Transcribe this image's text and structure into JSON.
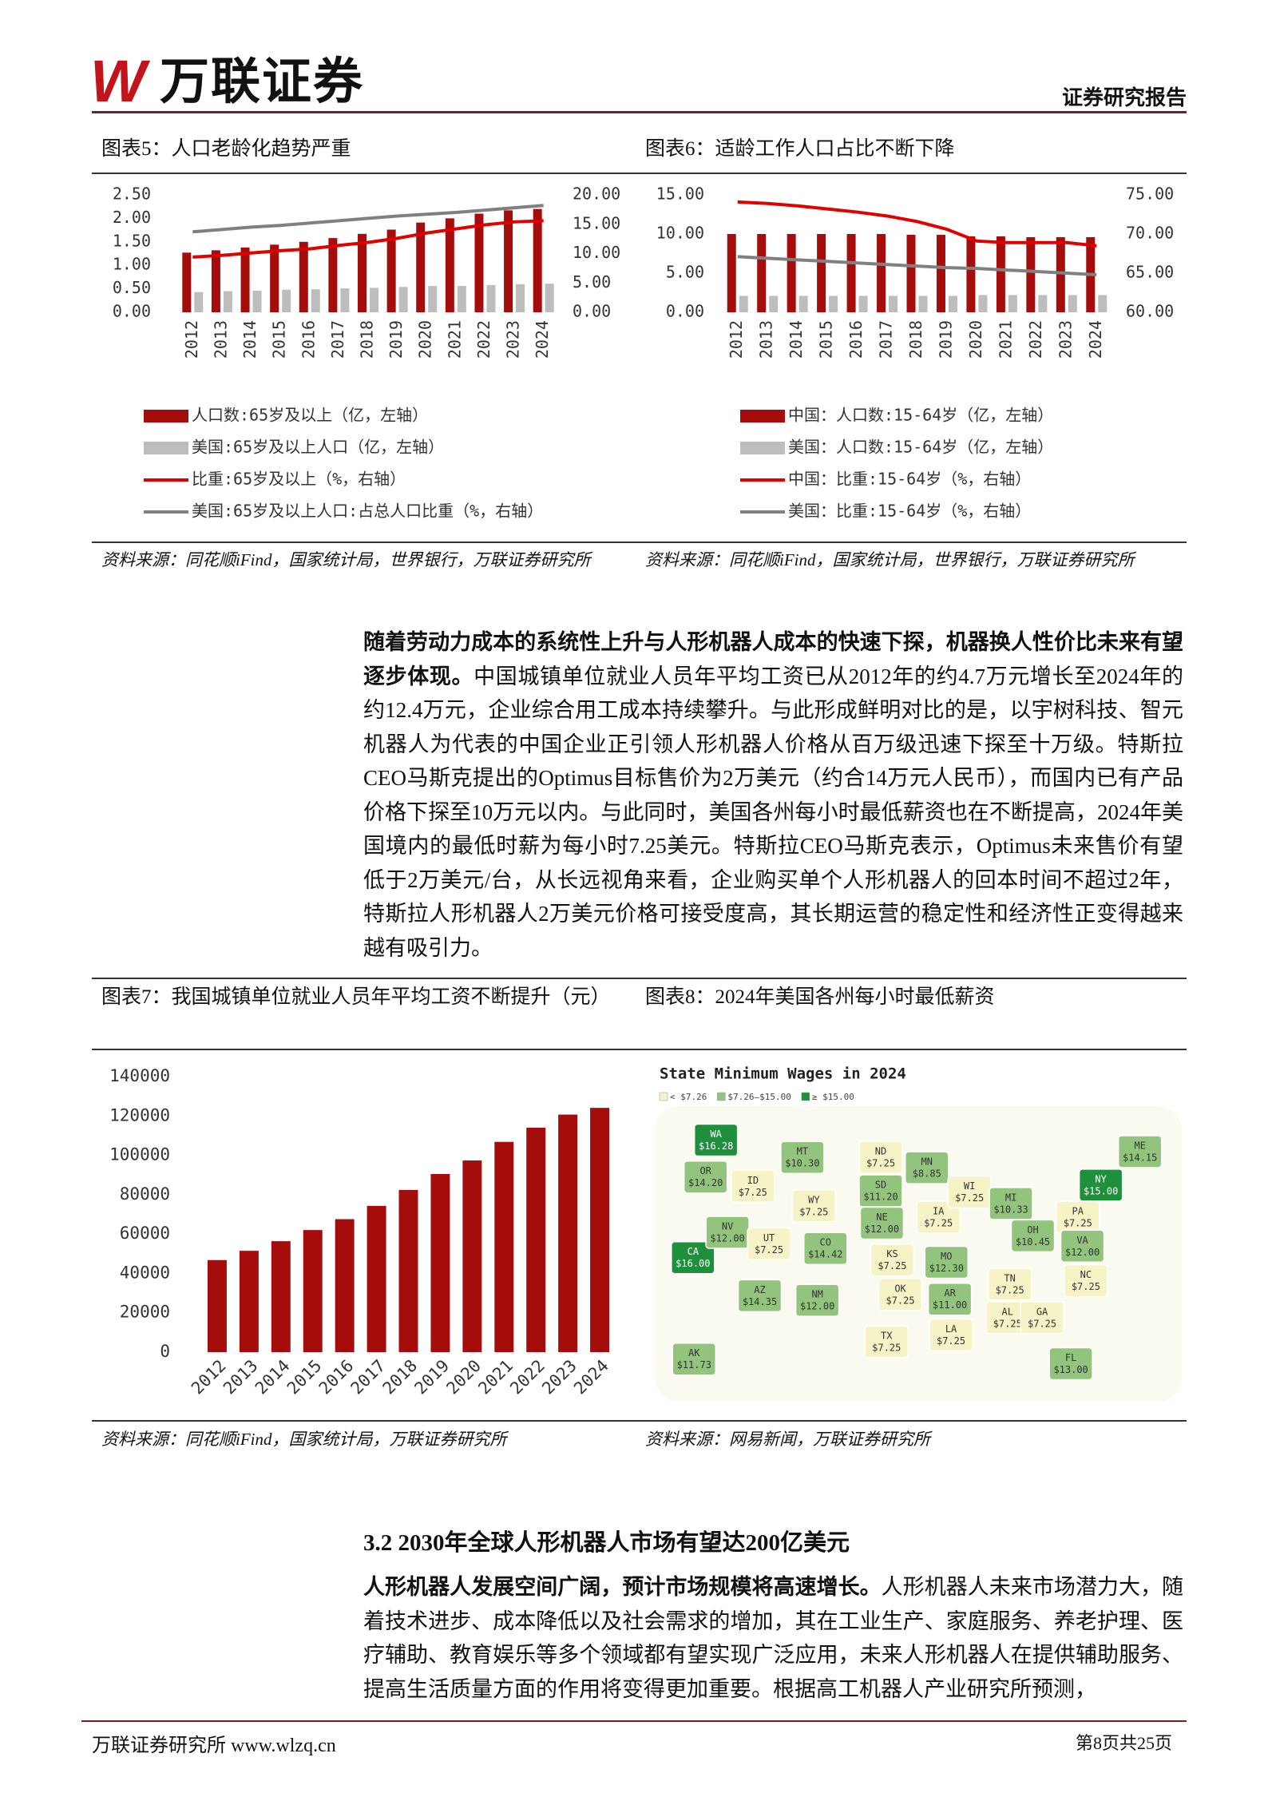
{
  "header": {
    "logo_mark": "W",
    "logo_text": "万联证券",
    "report_type": "证券研究报告"
  },
  "figures": [
    {
      "title": "图表5：人口老龄化趋势严重",
      "source": "资料来源：同花顺iFind，国家统计局，世界银行，万联证券研究所",
      "chart": {
        "type": "bar",
        "categories": [
          "2012",
          "2013",
          "2014",
          "2015",
          "2016",
          "2017",
          "2018",
          "2019",
          "2020",
          "2021",
          "2022",
          "2023",
          "2024"
        ],
        "series": [
          {
            "name": "人口数:65岁及以上（亿，左轴）",
            "type": "bar",
            "color": "#a50d0d",
            "values": [
              1.27,
              1.32,
              1.38,
              1.44,
              1.5,
              1.58,
              1.67,
              1.76,
              1.91,
              2.0,
              2.1,
              2.17,
              2.2
            ]
          },
          {
            "name": "美国:65岁及以上人口（亿，左轴）",
            "type": "bar",
            "color": "#bdbdbd",
            "values": [
              0.43,
              0.45,
              0.46,
              0.48,
              0.49,
              0.51,
              0.52,
              0.54,
              0.56,
              0.56,
              0.58,
              0.6,
              0.61
            ]
          },
          {
            "name": "比重:65岁及以上（%，右轴）",
            "type": "line",
            "axis": "y2",
            "color": "#e00000",
            "values": [
              9.4,
              9.7,
              10.1,
              10.5,
              10.8,
              11.4,
              11.9,
              12.6,
              13.5,
              14.2,
              14.9,
              15.4,
              15.6
            ]
          },
          {
            "name": "美国:65岁及以上人口:占总人口比重（%，右轴）",
            "type": "line",
            "axis": "y2",
            "color": "#808080",
            "values": [
              13.7,
              14.1,
              14.5,
              14.8,
              15.2,
              15.6,
              16.0,
              16.4,
              16.7,
              17.0,
              17.4,
              17.8,
              18.2
            ]
          }
        ],
        "ylim": [
          0,
          2.5
        ],
        "yticks": [
          {
            "value": 0,
            "label": "0.00"
          },
          {
            "value": 0.5,
            "label": "0.50"
          },
          {
            "value": 1,
            "label": "1.00"
          },
          {
            "value": 1.5,
            "label": "1.50"
          },
          {
            "value": 2,
            "label": "2.00"
          },
          {
            "value": 2.5,
            "label": "2.50"
          }
        ],
        "y2lim": [
          0,
          20
        ],
        "y2ticks": [
          {
            "value": 0,
            "label": "0.00"
          },
          {
            "value": 5,
            "label": "5.00"
          },
          {
            "value": 10,
            "label": "10.00"
          },
          {
            "value": 15,
            "label": "15.00"
          },
          {
            "value": 20,
            "label": "20.00"
          }
        ]
      }
    },
    {
      "title": "图表6：适龄工作人口占比不断下降",
      "source": "资料来源：同花顺iFind，国家统计局，世界银行，万联证券研究所",
      "chart": {
        "type": "bar",
        "categories": [
          "2012",
          "2013",
          "2014",
          "2015",
          "2016",
          "2017",
          "2018",
          "2019",
          "2020",
          "2021",
          "2022",
          "2023",
          "2024"
        ],
        "series": [
          {
            "name": "中国：人口数:15-64岁（亿，左轴）",
            "type": "bar",
            "color": "#a50d0d",
            "values": [
              10.0,
              10.0,
              10.0,
              10.0,
              10.0,
              10.0,
              9.9,
              9.9,
              9.7,
              9.7,
              9.6,
              9.6,
              9.6
            ]
          },
          {
            "name": "美国：人口数:15-64岁（亿，左轴）",
            "type": "bar",
            "color": "#bdbdbd",
            "values": [
              2.1,
              2.1,
              2.1,
              2.1,
              2.1,
              2.1,
              2.1,
              2.1,
              2.2,
              2.2,
              2.2,
              2.2,
              2.2
            ]
          },
          {
            "name": "中国：比重:15-64岁（%，右轴）",
            "type": "line",
            "axis": "y2",
            "color": "#e00000",
            "values": [
              74.1,
              73.9,
              73.6,
              73.2,
              72.8,
              72.3,
              71.6,
              70.6,
              69.1,
              68.9,
              68.9,
              68.9,
              68.5
            ]
          },
          {
            "name": "美国：比重:15-64岁（%，右轴）",
            "type": "line",
            "axis": "y2",
            "color": "#808080",
            "values": [
              67.1,
              66.9,
              66.7,
              66.5,
              66.3,
              66.1,
              65.9,
              65.7,
              65.6,
              65.4,
              65.2,
              65.0,
              64.8
            ]
          }
        ],
        "ylim": [
          0,
          15
        ],
        "yticks": [
          {
            "value": 0,
            "label": "0.00"
          },
          {
            "value": 5,
            "label": "5.00"
          },
          {
            "value": 10,
            "label": "10.00"
          },
          {
            "value": 15,
            "label": "15.00"
          }
        ],
        "y2lim": [
          60,
          75
        ],
        "y2ticks": [
          {
            "value": 60,
            "label": "60.00"
          },
          {
            "value": 65,
            "label": "65.00"
          },
          {
            "value": 70,
            "label": "70.00"
          },
          {
            "value": 75,
            "label": "75.00"
          }
        ]
      }
    },
    {
      "title": "图表7：我国城镇单位就业人员年平均工资不断提升（元）",
      "source": "资料来源：同花顺iFind，国家统计局，万联证券研究所",
      "chart": {
        "type": "bar",
        "categories": [
          "2012",
          "2013",
          "2014",
          "2015",
          "2016",
          "2017",
          "2018",
          "2019",
          "2020",
          "2021",
          "2022",
          "2023",
          "2024"
        ],
        "values": [
          46769,
          51483,
          56360,
          62029,
          67569,
          74318,
          82413,
          90501,
          97379,
          106837,
          114029,
          120698,
          124110
        ],
        "color": "#a50d0d",
        "ylim": [
          0,
          140000
        ],
        "yticks": [
          0,
          20000,
          40000,
          60000,
          80000,
          100000,
          120000,
          140000
        ]
      }
    },
    {
      "title": "图表8：2024年美国各州每小时最低薪资",
      "source": "资料来源：网易新闻，万联证券研究所",
      "chart": {
        "type": "map",
        "title": "State Minimum Wages in 2024",
        "legend": [
          {
            "label": "< $7.26",
            "color": "#f6f3c6"
          },
          {
            "label": "$7.26–$15.00",
            "color": "#93c47d"
          },
          {
            "label": "≥ $15.00",
            "color": "#1e8f3b"
          }
        ],
        "breaks": [
          7.26,
          15
        ],
        "states": [
          "WA",
          "OR",
          "CA",
          "NV",
          "ID",
          "MT",
          "WY",
          "UT",
          "AZ",
          "CO",
          "NM",
          "ND",
          "SD",
          "NE",
          "KS",
          "OK",
          "TX",
          "MN",
          "IA",
          "MO",
          "AR",
          "LA",
          "WI",
          "MI",
          "OH",
          "TN",
          "AL",
          "GA",
          "FL",
          "PA",
          "NY",
          "VA",
          "NC",
          "ME",
          "AK"
        ],
        "values": [
          16.28,
          14.2,
          16.0,
          12.0,
          7.25,
          10.3,
          7.25,
          7.25,
          14.35,
          14.42,
          12.0,
          7.25,
          11.2,
          12.0,
          7.25,
          7.25,
          7.25,
          8.85,
          7.25,
          12.3,
          11.0,
          7.25,
          7.25,
          10.33,
          10.45,
          7.25,
          7.25,
          7.25,
          13.0,
          7.25,
          15.0,
          12.0,
          7.25,
          14.15,
          11.73
        ],
        "value_labels": [
          "$16.28",
          "$14.20",
          "$16.00",
          "$12.00",
          "$7.25",
          "$10.30",
          "$7.25",
          "$7.25",
          "$14.35",
          "$14.42",
          "$12.00",
          "$7.25",
          "$11.20",
          "$12.00",
          "$7.25",
          "$7.25",
          "$7.25",
          "$8.85",
          "$7.25",
          "$12.30",
          "$11.00",
          "$7.25",
          "$7.25",
          "$10.33",
          "$10.45",
          "$7.25",
          "$7.25",
          "$7.25",
          "$13.00",
          "$7.25",
          "$15.00",
          "$12.00",
          "$7.25",
          "$14.15",
          "$11.73"
        ]
      }
    }
  ],
  "paragraphs": [
    {
      "lead": "随着劳动力成本的系统性上升与人形机器人成本的快速下探，机器换人性价比未来有望逐步体现。",
      "text": "中国城镇单位就业人员年平均工资已从2012年的约4.7万元增长至2024年的约12.4万元，企业综合用工成本持续攀升。与此形成鲜明对比的是，以宇树科技、智元机器人为代表的中国企业正引领人形机器人价格从百万级迅速下探至十万级。特斯拉CEO马斯克提出的Optimus目标售价为2万美元（约合14万元人民币），而国内已有产品价格下探至10万元以内。与此同时，美国各州每小时最低薪资也在不断提高，2024年美国境内的最低时薪为每小时7.25美元。特斯拉CEO马斯克表示，Optimus未来售价有望低于2万美元/台，从长远视角来看，企业购买单个人形机器人的回本时间不超过2年，特斯拉人形机器人2万美元价格可接受度高，其长期运营的稳定性和经济性正变得越来越有吸引力。"
    }
  ],
  "section": {
    "heading": "3.2 2030年全球人形机器人市场有望达200亿美元",
    "lead": "人形机器人发展空间广阔，预计市场规模将高速增长。",
    "text": "人形机器人未来市场潜力大，随着技术进步、成本降低以及社会需求的增加，其在工业生产、家庭服务、养老护理、医疗辅助、教育娱乐等多个领域都有望实现广泛应用，未来人形机器人在提供辅助服务、提高生活质量方面的作用将变得更加重要。根据高工机器人产业研究所预测，"
  },
  "footer": {
    "left": "万联证券研究所 www.wlzq.cn",
    "right": "第8页共25页"
  }
}
